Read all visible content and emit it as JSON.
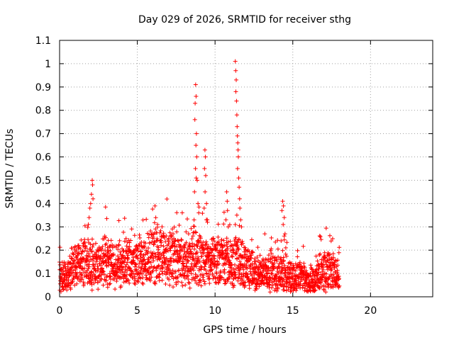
{
  "chart_data": {
    "type": "scatter",
    "title": "Day 029 of 2026, SRMTID for receiver sthg",
    "xlabel": "GPS time / hours",
    "ylabel": "SRMTID / TECUs",
    "xlim": [
      0,
      24
    ],
    "ylim": [
      0,
      1.1
    ],
    "xticks": [
      0,
      5,
      10,
      15,
      20
    ],
    "xtick_labels": [
      "0",
      "5",
      "10",
      "15",
      "20"
    ],
    "yticks": [
      0,
      0.1,
      0.2,
      0.3,
      0.4,
      0.5,
      0.6,
      0.7,
      0.8,
      0.9,
      1,
      1.1
    ],
    "ytick_labels": [
      "0",
      "0.1",
      "0.2",
      "0.3",
      "0.4",
      "0.5",
      "0.6",
      "0.7",
      "0.8",
      "0.9",
      "1",
      "1.1"
    ],
    "grid": true,
    "marker": "plus",
    "color": "#ff0000",
    "baseline_profile": [
      [
        0.0,
        0.09
      ],
      [
        0.5,
        0.08
      ],
      [
        1.0,
        0.13
      ],
      [
        1.5,
        0.15
      ],
      [
        2.0,
        0.14
      ],
      [
        2.5,
        0.12
      ],
      [
        3.0,
        0.16
      ],
      [
        3.5,
        0.15
      ],
      [
        4.0,
        0.13
      ],
      [
        4.5,
        0.15
      ],
      [
        5.0,
        0.14
      ],
      [
        5.5,
        0.15
      ],
      [
        6.0,
        0.17
      ],
      [
        6.5,
        0.19
      ],
      [
        7.0,
        0.17
      ],
      [
        7.5,
        0.18
      ],
      [
        8.0,
        0.14
      ],
      [
        8.5,
        0.16
      ],
      [
        9.0,
        0.17
      ],
      [
        9.5,
        0.13
      ],
      [
        10.0,
        0.15
      ],
      [
        10.5,
        0.17
      ],
      [
        11.0,
        0.14
      ],
      [
        11.5,
        0.16
      ],
      [
        12.0,
        0.13
      ],
      [
        12.5,
        0.1
      ],
      [
        13.0,
        0.1
      ],
      [
        13.5,
        0.11
      ],
      [
        14.0,
        0.1
      ],
      [
        14.5,
        0.11
      ],
      [
        15.0,
        0.08
      ],
      [
        15.5,
        0.09
      ],
      [
        16.0,
        0.06
      ],
      [
        16.5,
        0.08
      ],
      [
        17.0,
        0.12
      ],
      [
        17.5,
        0.11
      ],
      [
        18.0,
        0.08
      ]
    ],
    "spikes": [
      {
        "x": 2.1,
        "y": 0.5
      },
      {
        "x": 2.12,
        "y": 0.48
      },
      {
        "x": 2.05,
        "y": 0.44
      },
      {
        "x": 2.0,
        "y": 0.4
      },
      {
        "x": 1.95,
        "y": 0.38
      },
      {
        "x": 1.9,
        "y": 0.34
      },
      {
        "x": 2.15,
        "y": 0.42
      },
      {
        "x": 1.85,
        "y": 0.31
      },
      {
        "x": 6.3,
        "y": 0.31
      },
      {
        "x": 7.3,
        "y": 0.27
      },
      {
        "x": 8.3,
        "y": 0.27
      },
      {
        "x": 8.75,
        "y": 0.91
      },
      {
        "x": 8.78,
        "y": 0.86
      },
      {
        "x": 8.72,
        "y": 0.83
      },
      {
        "x": 8.7,
        "y": 0.76
      },
      {
        "x": 8.8,
        "y": 0.7
      },
      {
        "x": 8.77,
        "y": 0.65
      },
      {
        "x": 8.82,
        "y": 0.6
      },
      {
        "x": 8.74,
        "y": 0.55
      },
      {
        "x": 8.79,
        "y": 0.51
      },
      {
        "x": 8.85,
        "y": 0.5
      },
      {
        "x": 8.68,
        "y": 0.45
      },
      {
        "x": 8.9,
        "y": 0.4
      },
      {
        "x": 8.95,
        "y": 0.36
      },
      {
        "x": 8.65,
        "y": 0.33
      },
      {
        "x": 9.35,
        "y": 0.63
      },
      {
        "x": 9.38,
        "y": 0.6
      },
      {
        "x": 9.32,
        "y": 0.55
      },
      {
        "x": 9.4,
        "y": 0.52
      },
      {
        "x": 9.36,
        "y": 0.45
      },
      {
        "x": 9.45,
        "y": 0.4
      },
      {
        "x": 9.3,
        "y": 0.38
      },
      {
        "x": 9.5,
        "y": 0.33
      },
      {
        "x": 10.75,
        "y": 0.45
      },
      {
        "x": 10.78,
        "y": 0.41
      },
      {
        "x": 10.8,
        "y": 0.37
      },
      {
        "x": 10.7,
        "y": 0.33
      },
      {
        "x": 10.85,
        "y": 0.3
      },
      {
        "x": 11.3,
        "y": 1.01
      },
      {
        "x": 11.33,
        "y": 0.97
      },
      {
        "x": 11.36,
        "y": 0.93
      },
      {
        "x": 11.34,
        "y": 0.88
      },
      {
        "x": 11.38,
        "y": 0.84
      },
      {
        "x": 11.4,
        "y": 0.78
      },
      {
        "x": 11.42,
        "y": 0.73
      },
      {
        "x": 11.44,
        "y": 0.69
      },
      {
        "x": 11.46,
        "y": 0.66
      },
      {
        "x": 11.48,
        "y": 0.63
      },
      {
        "x": 11.5,
        "y": 0.6
      },
      {
        "x": 11.45,
        "y": 0.55
      },
      {
        "x": 11.52,
        "y": 0.51
      },
      {
        "x": 11.55,
        "y": 0.47
      },
      {
        "x": 11.58,
        "y": 0.42
      },
      {
        "x": 11.6,
        "y": 0.38
      },
      {
        "x": 11.4,
        "y": 0.35
      },
      {
        "x": 11.65,
        "y": 0.33
      },
      {
        "x": 11.3,
        "y": 0.31
      },
      {
        "x": 11.7,
        "y": 0.3
      },
      {
        "x": 14.35,
        "y": 0.41
      },
      {
        "x": 14.4,
        "y": 0.39
      },
      {
        "x": 14.3,
        "y": 0.37
      },
      {
        "x": 14.45,
        "y": 0.34
      },
      {
        "x": 14.38,
        "y": 0.31
      },
      {
        "x": 14.5,
        "y": 0.27
      },
      {
        "x": 14.25,
        "y": 0.24
      },
      {
        "x": 14.55,
        "y": 0.21
      }
    ]
  }
}
